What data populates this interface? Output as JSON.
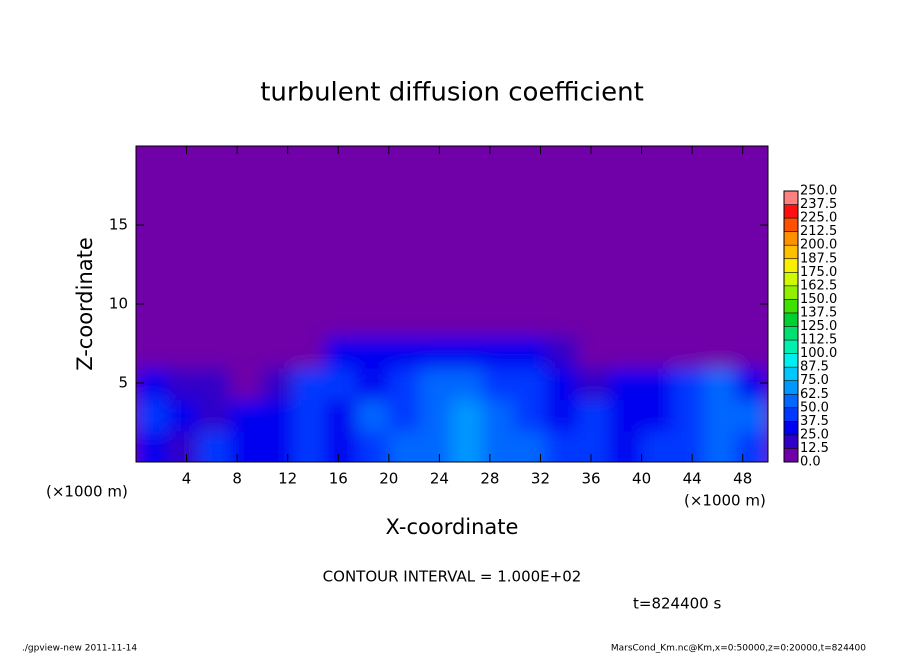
{
  "chart_data": {
    "type": "heatmap",
    "title": "turbulent diffusion coefficient",
    "x_label": "X-coordinate",
    "y_label": "Z-coordinate",
    "x_unit": "(×1000 m)",
    "y_unit": "(×1000 m)",
    "contour_note": "CONTOUR INTERVAL = 1.000E+02",
    "time_note": "t=824400 s",
    "footer_left": "./gpview-new  2011-11-14",
    "footer_right": "MarsCond_Km.nc@Km,x=0:50000,z=0:20000,t=824400",
    "xlim": [
      0,
      50
    ],
    "ylim": [
      0,
      20
    ],
    "xticks": [
      4,
      8,
      12,
      16,
      20,
      24,
      28,
      32,
      36,
      40,
      44,
      48
    ],
    "yticks": [
      5,
      10,
      15
    ],
    "x": [
      1.25,
      3.75,
      6.25,
      8.75,
      11.25,
      13.75,
      16.25,
      18.75,
      21.25,
      23.75,
      26.25,
      28.75,
      31.25,
      33.75,
      36.25,
      38.75,
      41.25,
      43.75,
      46.25,
      48.75
    ],
    "z": [
      1,
      3,
      5,
      7,
      9,
      11,
      13,
      15,
      17,
      19
    ],
    "values": [
      [
        30,
        20,
        40,
        30,
        35,
        40,
        35,
        45,
        50,
        60,
        70,
        60,
        50,
        45,
        40,
        35,
        45,
        40,
        60,
        40
      ],
      [
        40,
        35,
        20,
        25,
        30,
        45,
        35,
        50,
        45,
        55,
        65,
        55,
        45,
        35,
        40,
        30,
        35,
        40,
        55,
        50
      ],
      [
        30,
        20,
        15,
        10,
        15,
        40,
        45,
        35,
        40,
        50,
        55,
        45,
        40,
        35,
        20,
        30,
        25,
        40,
        50,
        35
      ],
      [
        0,
        0,
        0,
        0,
        0,
        10,
        25,
        30,
        30,
        35,
        35,
        30,
        25,
        15,
        5,
        0,
        0,
        0,
        0,
        0
      ],
      [
        0,
        0,
        0,
        0,
        0,
        0,
        0,
        0,
        0,
        0,
        0,
        0,
        0,
        0,
        0,
        0,
        0,
        0,
        0,
        0
      ],
      [
        0,
        0,
        0,
        0,
        0,
        0,
        0,
        0,
        0,
        0,
        0,
        0,
        0,
        0,
        0,
        0,
        0,
        0,
        0,
        0
      ],
      [
        0,
        0,
        0,
        0,
        0,
        0,
        0,
        0,
        0,
        0,
        0,
        0,
        0,
        0,
        0,
        0,
        0,
        0,
        0,
        0
      ],
      [
        0,
        0,
        0,
        0,
        0,
        0,
        0,
        0,
        0,
        0,
        0,
        0,
        0,
        0,
        0,
        0,
        0,
        0,
        0,
        0
      ],
      [
        0,
        0,
        0,
        0,
        0,
        0,
        0,
        0,
        0,
        0,
        0,
        0,
        0,
        0,
        0,
        0,
        0,
        0,
        0,
        0
      ],
      [
        0,
        0,
        0,
        0,
        0,
        0,
        0,
        0,
        0,
        0,
        0,
        0,
        0,
        0,
        0,
        0,
        0,
        0,
        0,
        0
      ]
    ],
    "levels": [
      {
        "value": 0,
        "label": "0.0"
      },
      {
        "value": 12.5,
        "label": "12.5"
      },
      {
        "value": 25,
        "label": "25.0"
      },
      {
        "value": 37.5,
        "label": "37.5"
      },
      {
        "value": 50,
        "label": "50.0"
      },
      {
        "value": 62.5,
        "label": "62.5"
      },
      {
        "value": 75,
        "label": "75.0"
      },
      {
        "value": 87.5,
        "label": "87.5"
      },
      {
        "value": 100,
        "label": "100.0"
      },
      {
        "value": 112.5,
        "label": "112.5"
      },
      {
        "value": 125,
        "label": "125.0"
      },
      {
        "value": 137.5,
        "label": "137.5"
      },
      {
        "value": 150,
        "label": "150.0"
      },
      {
        "value": 162.5,
        "label": "162.5"
      },
      {
        "value": 175,
        "label": "175.0"
      },
      {
        "value": 187.5,
        "label": "187.5"
      },
      {
        "value": 200,
        "label": "200.0"
      },
      {
        "value": 212.5,
        "label": "212.5"
      },
      {
        "value": 225,
        "label": "225.0"
      },
      {
        "value": 237.5,
        "label": "237.5"
      },
      {
        "value": 250,
        "label": "250.0"
      }
    ],
    "colors": [
      "#7000a8",
      "#3000c8",
      "#0000f0",
      "#0038ff",
      "#0068ff",
      "#0098ff",
      "#00c8ff",
      "#00f0f0",
      "#00f0b0",
      "#00e070",
      "#00d030",
      "#40e000",
      "#90f000",
      "#d0f800",
      "#f8f000",
      "#ffc000",
      "#ff9000",
      "#ff5000",
      "#ff1010",
      "#ff8080"
    ]
  }
}
